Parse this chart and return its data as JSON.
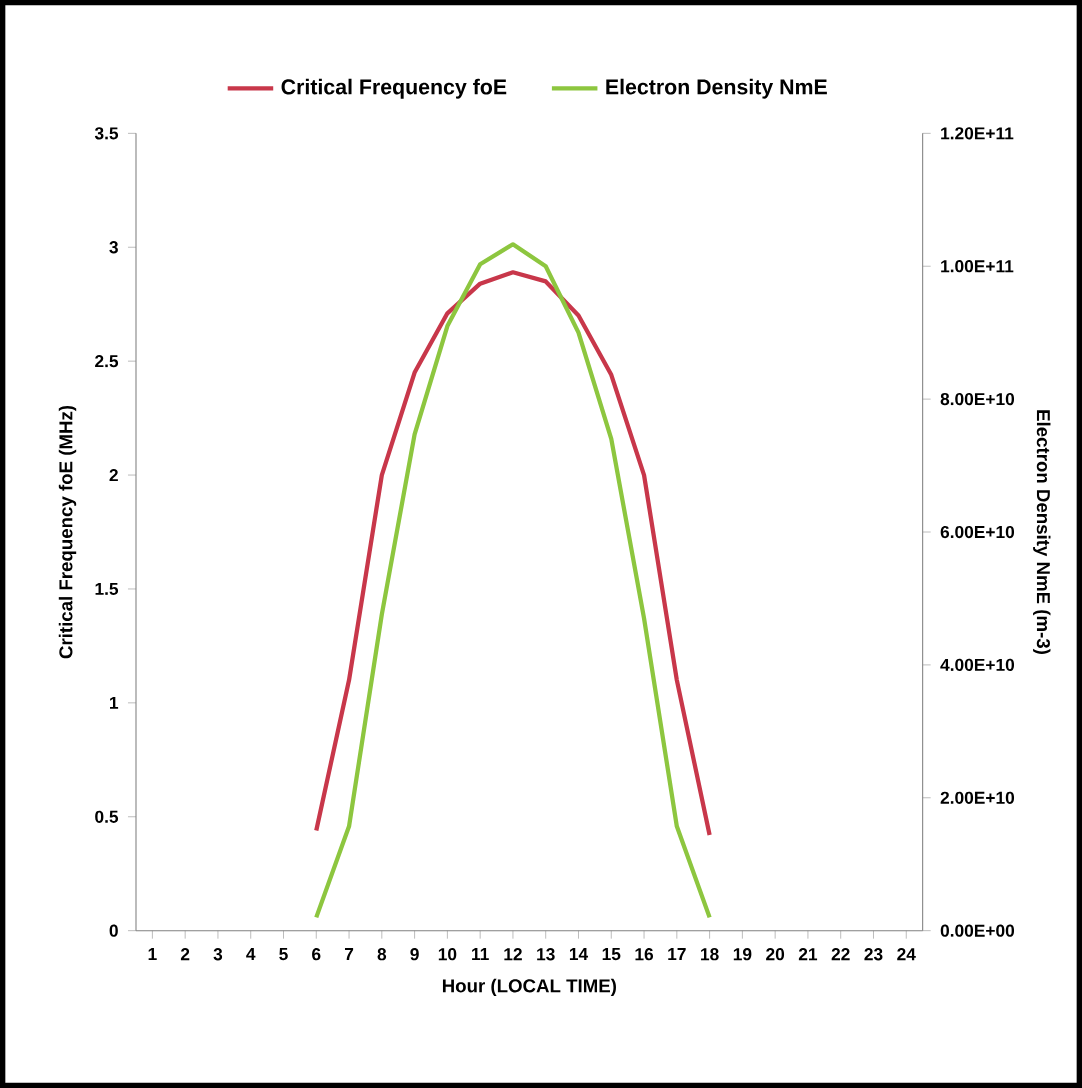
{
  "chart_data": {
    "type": "line",
    "xlabel": "Hour (LOCAL TIME)",
    "ylabel": "Critical Frequency foE (MHz)",
    "y2label": "Electron Density NmE (m-3)",
    "categories": [
      "1",
      "2",
      "3",
      "4",
      "5",
      "6",
      "7",
      "8",
      "9",
      "10",
      "11",
      "12",
      "13",
      "14",
      "15",
      "16",
      "17",
      "18",
      "19",
      "20",
      "21",
      "22",
      "23",
      "24"
    ],
    "series": [
      {
        "name": "Critical Frequency foE",
        "color": "#c8374a",
        "values": [
          null,
          null,
          null,
          null,
          null,
          0.44,
          1.1,
          2.0,
          2.45,
          2.71,
          2.84,
          2.89,
          2.85,
          2.7,
          2.44,
          2.0,
          1.1,
          0.42,
          null,
          null,
          null,
          null,
          null,
          null
        ]
      },
      {
        "name": "Electron Density NmE",
        "color": "#8dc63f",
        "axis": "y2",
        "values": [
          null,
          null,
          null,
          null,
          null,
          2000000000,
          15700000000,
          47600000000,
          74700000000,
          91000000000,
          100300000000,
          103300000000,
          100000000000,
          90000000000,
          74000000000,
          47000000000,
          15700000000,
          2000000000,
          null,
          null,
          null,
          null,
          null,
          null
        ]
      }
    ],
    "ylim": [
      0,
      3.5
    ],
    "yticks": [
      0,
      0.5,
      1,
      1.5,
      2,
      2.5,
      3,
      3.5
    ],
    "y2lim": [
      0,
      120000000000
    ],
    "y2ticks": [
      {
        "value": 0,
        "label": "0.00E+00"
      },
      {
        "value": 20000000000,
        "label": "2.00E+10"
      },
      {
        "value": 40000000000,
        "label": "4.00E+10"
      },
      {
        "value": 60000000000,
        "label": "6.00E+10"
      },
      {
        "value": 80000000000,
        "label": "8.00E+10"
      },
      {
        "value": 100000000000,
        "label": "1.00E+11"
      },
      {
        "value": 120000000000,
        "label": "1.20E+11"
      }
    ],
    "grid": false,
    "legend": "top",
    "marker": "none",
    "line_style": "solid"
  }
}
